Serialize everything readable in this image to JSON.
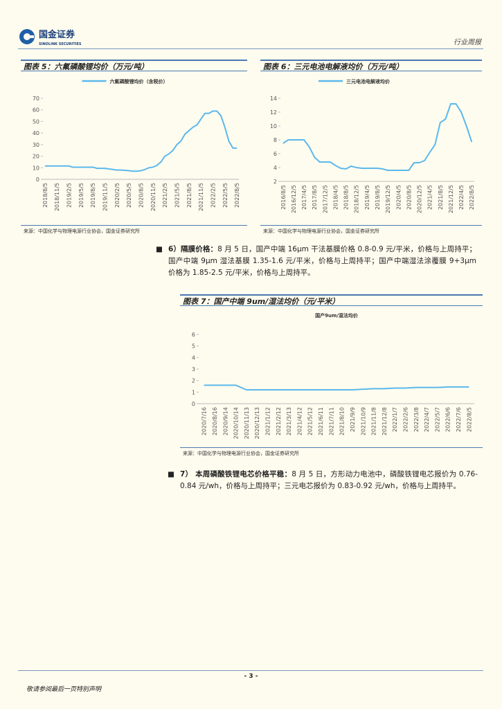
{
  "header": {
    "brand": "国金证券",
    "brand_en": "SINOLINK SECURITIES",
    "report_type": "行业周报"
  },
  "chart_data": [
    {
      "type": "line",
      "title": "图表 5：六氟磷酸锂均价（万元/吨）",
      "legend": "top",
      "source": "来源：中国化学与物理电源行业协会，国金证券研究所",
      "categories": [
        "2018/8/5",
        null,
        null,
        "2018/11/5",
        null,
        null,
        "2019/2/5",
        null,
        null,
        "2019/5/5",
        null,
        null,
        "2019/8/5",
        null,
        null,
        "2019/11/5",
        null,
        null,
        "2020/2/5",
        null,
        null,
        "2020/5/5",
        null,
        null,
        "2020/8/5",
        null,
        null,
        "2020/11/5",
        null,
        null,
        "2021/2/5",
        null,
        null,
        "2021/5/5",
        null,
        null,
        "2021/8/5",
        null,
        null,
        "2021/11/5",
        null,
        null,
        "2022/2/5",
        null,
        null,
        "2022/5/5",
        null,
        null,
        "2022/8/5"
      ],
      "series": [
        {
          "name": "六氟磷酸锂均价（含税价）",
          "color": "#5bb8ec",
          "values": [
            11.5,
            11.5,
            11.5,
            11.5,
            11.5,
            11.5,
            11.5,
            10.5,
            10.5,
            10.5,
            10.5,
            10.5,
            10.5,
            9.5,
            9.5,
            9.5,
            9,
            8.5,
            8,
            8,
            7.8,
            7.5,
            7,
            7,
            7.5,
            8.5,
            10,
            10.5,
            12,
            15,
            20,
            22,
            25,
            30,
            33,
            39,
            42,
            45,
            47,
            52,
            57,
            57,
            59,
            59,
            55,
            45,
            33,
            27,
            27
          ]
        }
      ],
      "ylim": [
        0,
        70
      ],
      "yticks": [
        0,
        10,
        20,
        30,
        40,
        50,
        60,
        70
      ]
    },
    {
      "type": "line",
      "title": "图表 6：三元电池电解液均价（万元/吨）",
      "legend": "top",
      "source": "来源：中国化学与物理电源行业协会，国金证券研究所",
      "categories": [
        "2016/8/5",
        null,
        "2016/12/5",
        null,
        "2017/4/5",
        null,
        "2017/8/5",
        null,
        "2017/12/5",
        null,
        "2018/4/5",
        null,
        "2018/8/5",
        null,
        "2018/12/5",
        null,
        "2019/4/5",
        null,
        "2019/8/5",
        null,
        "2019/12/5",
        null,
        "2020/4/5",
        null,
        "2020/8/5",
        null,
        "2020/12/5",
        null,
        "2021/4/5",
        null,
        "2021/8/5",
        null,
        "2021/12/5",
        null,
        "2022/4/5",
        null,
        "2022/8/5"
      ],
      "series": [
        {
          "name": "三元电池电解液均价",
          "color": "#5bb8ec",
          "values": [
            7.5,
            8,
            8,
            8,
            8,
            7,
            5.5,
            4.8,
            4.8,
            4.8,
            4.3,
            3.9,
            3.8,
            4.2,
            4.0,
            3.9,
            3.9,
            3.9,
            3.9,
            3.8,
            3.6,
            3.6,
            3.6,
            3.6,
            3.6,
            4.7,
            4.7,
            5.0,
            6.2,
            7.3,
            10.5,
            11,
            13.2,
            13.2,
            12,
            10,
            7.7
          ]
        }
      ],
      "ylim": [
        2,
        14
      ],
      "yticks": [
        2,
        4,
        6,
        8,
        10,
        12,
        14
      ]
    },
    {
      "type": "line",
      "title": "图表 7：国产中端 9um/湿法均价（元/平米）",
      "subtitle": "国产9um/湿法均价",
      "source": "来源：中国化学与物理电源行业协会，国金证券研究所",
      "categories": [
        "2020/7/16",
        "2020/8/16",
        "2020/9/14",
        "2020/10/14",
        "2020/11/13",
        "2020/12/13",
        "2021/1/12",
        "2021/2/12",
        "2021/3/13",
        "2021/4/12",
        "2021/5/12",
        "2021/6/11",
        "2021/7/11",
        "2021/8/10",
        "2021/9/9",
        "2021/10/9",
        "2021/11/8",
        "2021/12/8",
        "2022/1/7",
        "2022/2/6",
        "2022/3/8",
        "2022/4/7",
        "2022/5/7",
        "2022/6/6",
        "2022/7/6",
        "2022/8/5"
      ],
      "series": [
        {
          "color": "#5bb8ec",
          "values": [
            1.6,
            1.6,
            1.6,
            1.6,
            1.2,
            1.2,
            1.2,
            1.2,
            1.2,
            1.2,
            1.2,
            1.2,
            1.2,
            1.2,
            1.2,
            1.25,
            1.3,
            1.3,
            1.35,
            1.35,
            1.4,
            1.4,
            1.4,
            1.45,
            1.45,
            1.45
          ]
        }
      ],
      "ylim": [
        0,
        6
      ],
      "yticks": [
        0,
        1,
        2,
        3,
        4,
        5,
        6
      ]
    }
  ],
  "paragraphs": [
    {
      "lead": "6）隔膜价格：",
      "text": "8 月 5 日，国产中端 16μm 干法基膜价格 0.8-0.9 元/平米，价格与上周持平；国产中端 9μm 湿法基膜 1.35-1.6 元/平米，价格与上周持平；国产中端湿法涂覆膜 9+3μm 价格为 1.85-2.5 元/平米，价格与上周持平。"
    },
    {
      "lead": "7） 本周磷酸铁锂电芯价格平稳：",
      "text": "8 月 5 日，方形动力电池中，磷酸铁锂电芯报价为 0.76-0.84 元/wh，价格与上周持平；三元电芯报价为 0.83-0.92 元/wh，价格与上周持平。"
    }
  ],
  "footer": {
    "page": "- 3 -",
    "disclaimer": "敬请参阅最后一页特别声明"
  }
}
